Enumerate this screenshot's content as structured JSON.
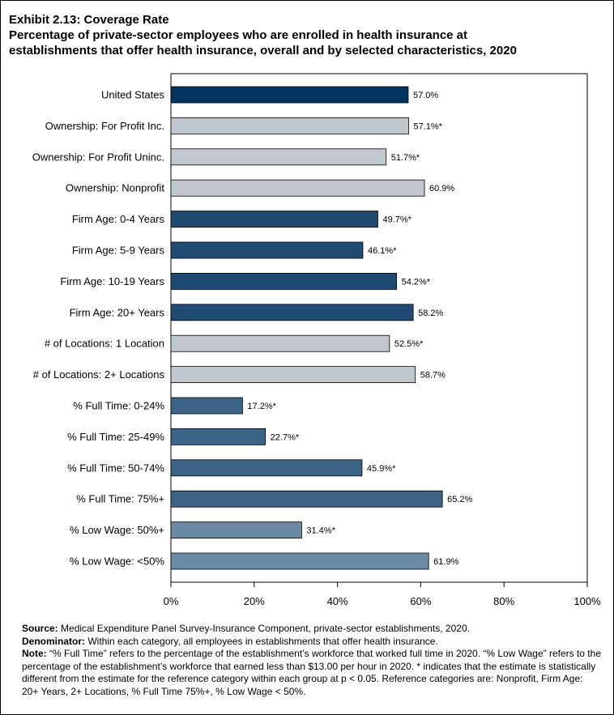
{
  "title_line1": "Exhibit 2.13: Coverage Rate",
  "title_line2": "Percentage of private-sector employees who are enrolled in health insurance at",
  "title_line3": "establishments that offer health insurance, overall and by selected characteristics, 2020",
  "notes": {
    "source_label": "Source:",
    "source_text": "Medical Expenditure Panel Survey-Insurance Component, private-sector establishments, 2020.",
    "denominator_label": "Denominator:",
    "denominator_text": "Within each category, all employees in establishments that offer health insurance.",
    "note_label": "Note:",
    "note_text": "“% Full Time” refers to the percentage of the establishment’s workforce that worked full time in 2020. “% Low Wage” refers to the percentage of the establishment’s workforce that earned less than $13.00 per hour in 2020. * indicates that the estimate is statistically different from the estimate for the reference category within each group at p < 0.05.  Reference categories are: Nonprofit, Firm Age: 20+ Years, 2+ Locations, % Full Time 75%+, % Low Wage < 50%."
  },
  "chart_data": {
    "type": "bar",
    "orientation": "horizontal",
    "title": "Exhibit 2.13: Coverage Rate",
    "xlabel": "",
    "ylabel": "",
    "xlim": [
      0,
      100
    ],
    "xticks": [
      "0%",
      "20%",
      "40%",
      "60%",
      "80%",
      "100%"
    ],
    "grid": false,
    "categories": [
      "United States",
      "Ownership: For Profit Inc.",
      "Ownership: For Profit Uninc.",
      "Ownership: Nonprofit",
      "Firm Age: 0-4 Years",
      "Firm Age: 5-9 Years",
      "Firm Age: 10-19 Years",
      "Firm Age: 20+ Years",
      "# of Locations: 1 Location",
      "# of Locations: 2+ Locations",
      "% Full Time: 0-24%",
      "% Full Time: 25-49%",
      "% Full Time: 50-74%",
      "% Full Time: 75%+",
      "% Low Wage: 50%+",
      "% Low Wage: <50%"
    ],
    "values": [
      57.0,
      57.1,
      51.7,
      60.9,
      49.7,
      46.1,
      54.2,
      58.2,
      52.5,
      58.7,
      17.2,
      22.7,
      45.9,
      65.2,
      31.4,
      61.9
    ],
    "data_labels": [
      "57.0%",
      "57.1%*",
      "51.7%*",
      "60.9%",
      "49.7%*",
      "46.1%*",
      "54.2%*",
      "58.2%",
      "52.5%*",
      "58.7%",
      "17.2%*",
      "22.7%*",
      "45.9%*",
      "65.2%",
      "31.4%*",
      "61.9%"
    ],
    "colors": [
      "#003560",
      "#c0c7ce",
      "#c0c7ce",
      "#c0c7ce",
      "#1f4b73",
      "#1f4b73",
      "#1f4b73",
      "#1f4b73",
      "#c0c7ce",
      "#c0c7ce",
      "#3d6386",
      "#3d6386",
      "#3d6386",
      "#3d6386",
      "#6a8aa6",
      "#6a8aa6"
    ]
  }
}
